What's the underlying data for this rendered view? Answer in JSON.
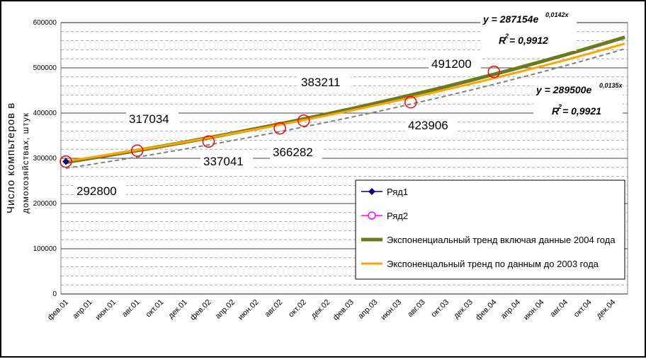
{
  "chart_data": {
    "type": "line",
    "ylabel_line1": "Число компьтеров в",
    "ylabel_line2": "домохозяйствах, штук",
    "ylim": [
      0,
      600000
    ],
    "yticks": [
      "0",
      "100000",
      "200000",
      "300000",
      "400000",
      "500000",
      "600000"
    ],
    "x_tick_labels": [
      "фев.01",
      "апр.01",
      "июн.01",
      "авг.01",
      "окт.01",
      "дек.01",
      "фев.02",
      "апр.02",
      "июн.02",
      "авг.02",
      "окт.02",
      "дек.02",
      "фев.03",
      "апр.03",
      "июн.03",
      "авг.03",
      "окт.03",
      "дек.03",
      "фев.04",
      "апр.04",
      "июн.04",
      "авг.04",
      "окт.04",
      "дек.04"
    ],
    "n_months": 48,
    "grid": true,
    "series": [
      {
        "name": "Ряд1",
        "marker": "diamond",
        "color": "#000080",
        "points": [
          {
            "month_index": 0,
            "value": 292800
          }
        ]
      },
      {
        "name": "Ряд2",
        "marker": "circle",
        "color": "#ff00ff",
        "points": [
          {
            "month_index": 0,
            "value": 292800
          },
          {
            "month_index": 6,
            "value": 317034
          },
          {
            "month_index": 12,
            "value": 337041
          },
          {
            "month_index": 18,
            "value": 366282
          },
          {
            "month_index": 20,
            "value": 383211
          },
          {
            "month_index": 29,
            "value": 423906
          },
          {
            "month_index": 36,
            "value": 491200
          }
        ]
      }
    ],
    "trends": [
      {
        "name": "Экспоненциальный тренд включая данные 2004 года",
        "color": "#6b7a1c",
        "a": 287154,
        "b": 0.0142,
        "eq": "y = 287154e",
        "exp": "0,0142x",
        "r2_label": "R",
        "r2_value": " = 0,9912"
      },
      {
        "name": "Экспоненцальный тренд по данным до 2003 года",
        "color": "#ffa500",
        "a": 289500,
        "b": 0.0135,
        "eq": "y = 289500e",
        "exp": "0,0135x",
        "r2_label": "R",
        "r2_value": " = 0,9921"
      }
    ],
    "dashed_series": {
      "color": "#808080",
      "start": 278000,
      "end": 542000
    },
    "data_labels": [
      "292800",
      "317034",
      "337041",
      "366282",
      "383211",
      "423906",
      "491200"
    ]
  }
}
